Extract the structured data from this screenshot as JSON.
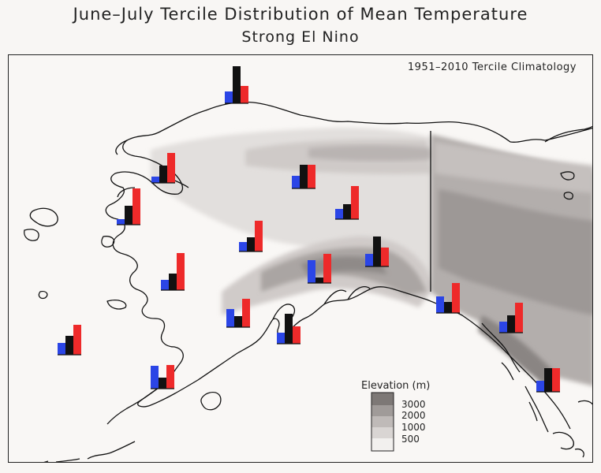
{
  "title": "June–July Tercile Distribution of Mean Temperature",
  "subtitle": "Strong El Nino",
  "climatology_note": "1951–2010 Tercile Climatology",
  "legend": {
    "title": "Elevation (m)",
    "levels": [
      {
        "label": "3000",
        "color": "#7d7876"
      },
      {
        "label": "2000",
        "color": "#a09b99"
      },
      {
        "label": "1000",
        "color": "#bfbab8"
      },
      {
        "label": "500",
        "color": "#d9d5d3"
      },
      {
        "label": "",
        "color": "#f2f0ee"
      }
    ]
  },
  "colors": {
    "below_normal": "#2b45e6",
    "near_normal": "#111111",
    "above_normal": "#ee2a2a",
    "coastline": "#111111"
  },
  "tercile_categories": [
    "below",
    "near",
    "above"
  ],
  "stations": [
    {
      "id": "utqiagvik",
      "values": [
        0.15,
        0.47,
        0.22
      ]
    },
    {
      "id": "kotzebue",
      "values": [
        0.08,
        0.22,
        0.38
      ]
    },
    {
      "id": "nome",
      "values": [
        0.07,
        0.24,
        0.46
      ]
    },
    {
      "id": "kuskokwim-north",
      "values": [
        0.13,
        0.21,
        0.47
      ]
    },
    {
      "id": "bethel",
      "values": [
        0.15,
        0.24,
        0.38
      ]
    },
    {
      "id": "koyukuk",
      "values": [
        0.12,
        0.18,
        0.39
      ]
    },
    {
      "id": "fairbanks",
      "values": [
        0.16,
        0.3,
        0.3
      ]
    },
    {
      "id": "upper-yukon",
      "values": [
        0.13,
        0.19,
        0.42
      ]
    },
    {
      "id": "st-paul",
      "values": [
        0.23,
        0.14,
        0.38
      ]
    },
    {
      "id": "king-salmon",
      "values": [
        0.23,
        0.14,
        0.36
      ]
    },
    {
      "id": "cold-bay",
      "values": [
        0.29,
        0.14,
        0.3
      ]
    },
    {
      "id": "talkeetna",
      "values": [
        0.29,
        0.07,
        0.37
      ]
    },
    {
      "id": "gulkana",
      "values": [
        0.16,
        0.38,
        0.24
      ]
    },
    {
      "id": "kenai",
      "values": [
        0.14,
        0.38,
        0.22
      ]
    },
    {
      "id": "yakutat",
      "values": [
        0.21,
        0.14,
        0.38
      ]
    },
    {
      "id": "juneau",
      "values": [
        0.14,
        0.22,
        0.38
      ]
    },
    {
      "id": "ketchikan",
      "values": [
        0.14,
        0.3,
        0.3
      ]
    }
  ]
}
